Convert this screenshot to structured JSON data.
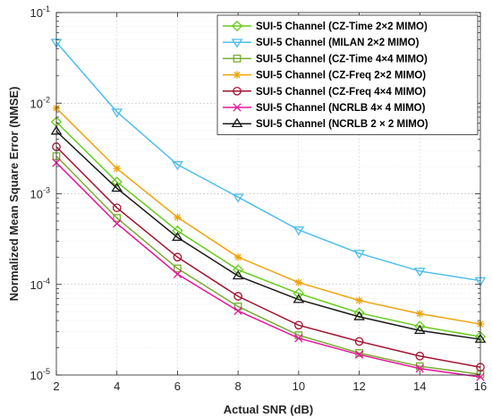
{
  "chart_data": {
    "type": "line",
    "title": "",
    "xlabel": "Actual SNR (dB)",
    "ylabel": "Normalized Mean Square Error (NMSE)",
    "xlim": [
      2,
      16
    ],
    "ylim": [
      1e-05,
      0.1
    ],
    "yscale": "log",
    "grid": true,
    "legend_position": "top-right",
    "x": [
      2,
      4,
      6,
      8,
      10,
      12,
      14,
      16
    ],
    "x_ticks": [
      "2",
      "4",
      "6",
      "8",
      "10",
      "12",
      "14",
      "16"
    ],
    "y_ticks": [
      {
        "base": "10",
        "exp": "-5"
      },
      {
        "base": "10",
        "exp": "-4"
      },
      {
        "base": "10",
        "exp": "-3"
      },
      {
        "base": "10",
        "exp": "-2"
      },
      {
        "base": "10",
        "exp": "-1"
      }
    ],
    "series": [
      {
        "name": "SUI-5 Channel (CZ-Time 2×2 MIMO)",
        "color": "#66cc1a",
        "marker": "diamond",
        "values": [
          0.0062,
          0.00135,
          0.00039,
          0.000145,
          7.95e-05,
          4.85e-05,
          3.45e-05,
          2.65e-05
        ]
      },
      {
        "name": "SUI-5 Channel (MILAN 2×2 MIMO)",
        "color": "#4dbeee",
        "marker": "triangle-down",
        "values": [
          0.047,
          0.008,
          0.0021,
          0.00092,
          0.0004,
          0.00022,
          0.00014,
          0.00011
        ]
      },
      {
        "name": "SUI-5 Channel (CZ-Time 4×4 MIMO)",
        "color": "#77ac30",
        "marker": "square",
        "values": [
          0.0026,
          0.00054,
          0.00015,
          5.7e-05,
          2.75e-05,
          1.75e-05,
          1.25e-05,
          1.02e-05
        ]
      },
      {
        "name": "SUI-5 Channel (CZ-Freq 2×2 MIMO)",
        "color": "#f0a30a",
        "marker": "asterisk",
        "values": [
          0.0088,
          0.0019,
          0.00055,
          0.0002,
          0.000105,
          6.65e-05,
          4.75e-05,
          3.65e-05
        ]
      },
      {
        "name": "SUI-5 Channel (CZ-Freq 4×4 MIMO)",
        "color": "#a2142f",
        "marker": "circle",
        "values": [
          0.0033,
          0.0007,
          0.0002,
          7.4e-05,
          3.55e-05,
          2.35e-05,
          1.62e-05,
          1.22e-05
        ]
      },
      {
        "name": "SUI-5 Channel (NCRLB 4× 4 MIMO)",
        "color": "#e6159a",
        "marker": "x",
        "values": [
          0.0022,
          0.00047,
          0.00013,
          5.1e-05,
          2.55e-05,
          1.68e-05,
          1.18e-05,
          9.5e-06
        ]
      },
      {
        "name": "SUI-5 Channel (NCRLB 2 × 2 MIMO)",
        "color": "#1a1a1a",
        "marker": "triangle-up",
        "values": [
          0.0049,
          0.00115,
          0.00033,
          0.000124,
          6.8e-05,
          4.4e-05,
          3.1e-05,
          2.48e-05
        ]
      }
    ]
  }
}
